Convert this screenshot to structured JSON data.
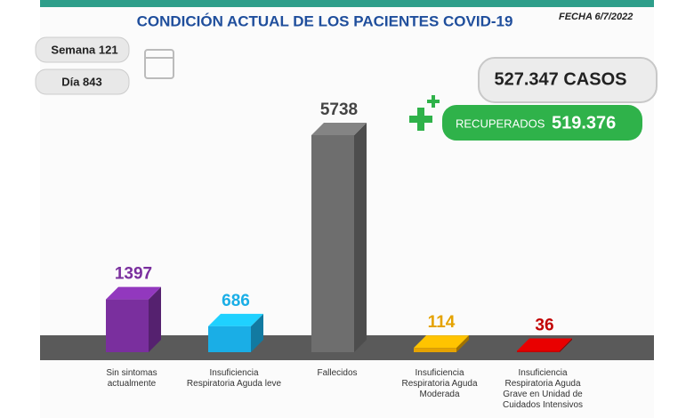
{
  "info": {
    "week": "Semana 121",
    "day": "Día 843",
    "date": "FECHA 6/7/2022",
    "cases": "527.347 CASOS",
    "recovered_label": "RECUPERADOS",
    "recovered_value": "519.376"
  },
  "chart_data": {
    "type": "bar",
    "title": "CONDICIÓN ACTUAL DE LOS PACIENTES COVID-19",
    "categories": [
      "Sin sintomas actualmente",
      "Insuficiencia Respiratoria Aguda leve",
      "Fallecidos",
      "Insuficiencia Respiratoria Aguda Moderada",
      "Insuficiencia Respiratoria Aguda Grave en Unidad de Cuidados Intensivos"
    ],
    "values": [
      1397,
      686,
      5738,
      114,
      36
    ],
    "colors": [
      "#7a2f9e",
      "#1aaee6",
      "#6e6e6e",
      "#e5a300",
      "#c20000"
    ]
  }
}
